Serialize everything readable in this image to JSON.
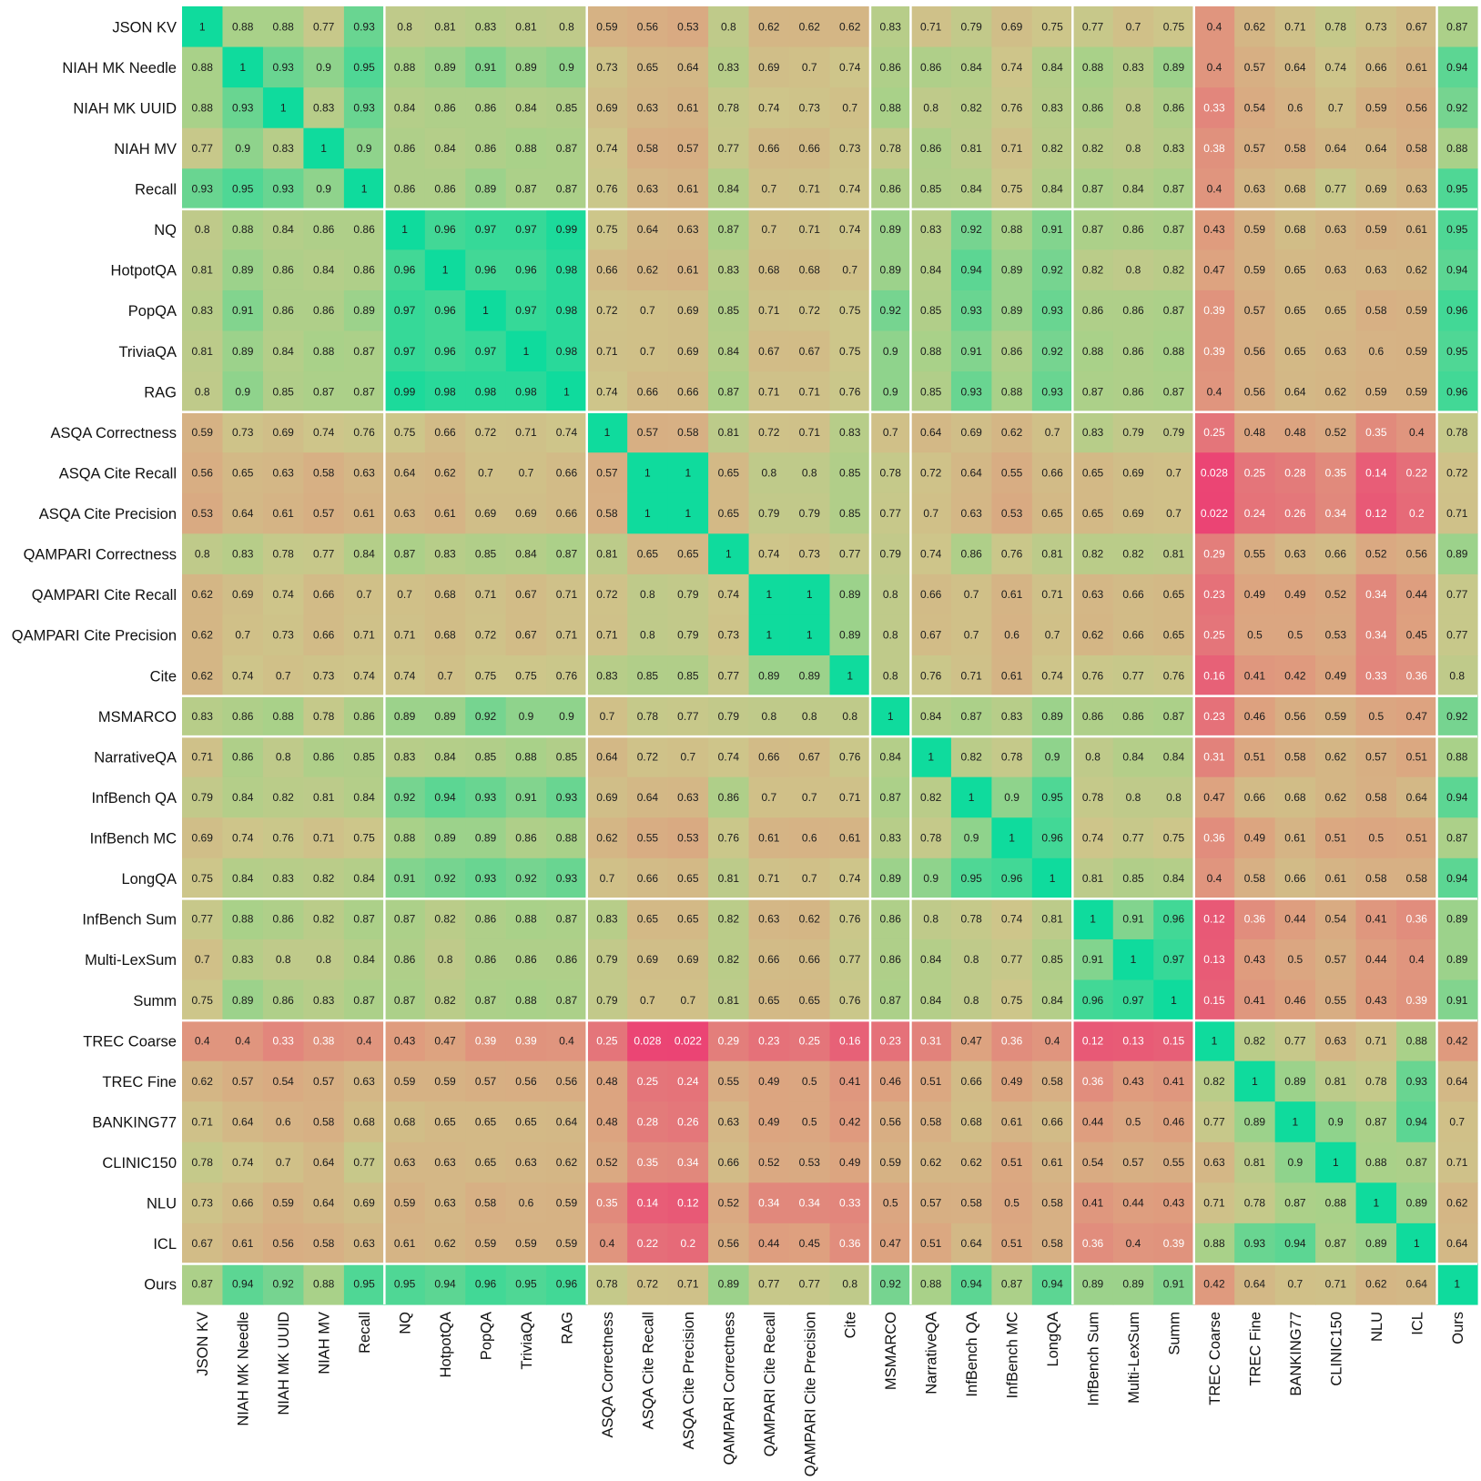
{
  "chart_data": {
    "type": "heatmap",
    "title": "",
    "xlabel": "",
    "ylabel": "",
    "labels": [
      "JSON KV",
      "NIAH MK Needle",
      "NIAH MK UUID",
      "NIAH MV",
      "Recall",
      "NQ",
      "HotpotQA",
      "PopQA",
      "TriviaQA",
      "RAG",
      "ASQA Correctness",
      "ASQA Cite Recall",
      "ASQA Cite Precision",
      "QAMPARI Correctness",
      "QAMPARI Cite Recall",
      "QAMPARI Cite Precision",
      "Cite",
      "MSMARCO",
      "NarrativeQA",
      "InfBench QA",
      "InfBench MC",
      "LongQA",
      "InfBench Sum",
      "Multi-LexSum",
      "Summ",
      "TREC Coarse",
      "TREC Fine",
      "BANKING77",
      "CLINIC150",
      "NLU",
      "ICL",
      "Ours"
    ],
    "group_sizes": [
      5,
      5,
      7,
      1,
      4,
      3,
      6,
      1
    ],
    "colormap": {
      "low": "#ec3f73",
      "mid_low": "#dea07f",
      "mid": "#cdc68a",
      "mid_high": "#a9d189",
      "high": "#0fdb9d"
    },
    "matrix": [
      [
        "1",
        "0.88",
        "0.88",
        "0.77",
        "0.93",
        "0.8",
        "0.81",
        "0.83",
        "0.81",
        "0.8",
        "0.59",
        "0.56",
        "0.53",
        "0.8",
        "0.62",
        "0.62",
        "0.62",
        "0.83",
        "0.71",
        "0.79",
        "0.69",
        "0.75",
        "0.77",
        "0.7",
        "0.75",
        "0.4",
        "0.62",
        "0.71",
        "0.78",
        "0.73",
        "0.67",
        "0.87"
      ],
      [
        "0.88",
        "1",
        "0.93",
        "0.9",
        "0.95",
        "0.88",
        "0.89",
        "0.91",
        "0.89",
        "0.9",
        "0.73",
        "0.65",
        "0.64",
        "0.83",
        "0.69",
        "0.7",
        "0.74",
        "0.86",
        "0.86",
        "0.84",
        "0.74",
        "0.84",
        "0.88",
        "0.83",
        "0.89",
        "0.4",
        "0.57",
        "0.64",
        "0.74",
        "0.66",
        "0.61",
        "0.94"
      ],
      [
        "0.88",
        "0.93",
        "1",
        "0.83",
        "0.93",
        "0.84",
        "0.86",
        "0.86",
        "0.84",
        "0.85",
        "0.69",
        "0.63",
        "0.61",
        "0.78",
        "0.74",
        "0.73",
        "0.7",
        "0.88",
        "0.8",
        "0.82",
        "0.76",
        "0.83",
        "0.86",
        "0.8",
        "0.86",
        "0.33",
        "0.54",
        "0.6",
        "0.7",
        "0.59",
        "0.56",
        "0.92"
      ],
      [
        "0.77",
        "0.9",
        "0.83",
        "1",
        "0.9",
        "0.86",
        "0.84",
        "0.86",
        "0.88",
        "0.87",
        "0.74",
        "0.58",
        "0.57",
        "0.77",
        "0.66",
        "0.66",
        "0.73",
        "0.78",
        "0.86",
        "0.81",
        "0.71",
        "0.82",
        "0.82",
        "0.8",
        "0.83",
        "0.38",
        "0.57",
        "0.58",
        "0.64",
        "0.64",
        "0.58",
        "0.88"
      ],
      [
        "0.93",
        "0.95",
        "0.93",
        "0.9",
        "1",
        "0.86",
        "0.86",
        "0.89",
        "0.87",
        "0.87",
        "0.76",
        "0.63",
        "0.61",
        "0.84",
        "0.7",
        "0.71",
        "0.74",
        "0.86",
        "0.85",
        "0.84",
        "0.75",
        "0.84",
        "0.87",
        "0.84",
        "0.87",
        "0.4",
        "0.63",
        "0.68",
        "0.77",
        "0.69",
        "0.63",
        "0.95"
      ],
      [
        "0.8",
        "0.88",
        "0.84",
        "0.86",
        "0.86",
        "1",
        "0.96",
        "0.97",
        "0.97",
        "0.99",
        "0.75",
        "0.64",
        "0.63",
        "0.87",
        "0.7",
        "0.71",
        "0.74",
        "0.89",
        "0.83",
        "0.92",
        "0.88",
        "0.91",
        "0.87",
        "0.86",
        "0.87",
        "0.43",
        "0.59",
        "0.68",
        "0.63",
        "0.59",
        "0.61",
        "0.95"
      ],
      [
        "0.81",
        "0.89",
        "0.86",
        "0.84",
        "0.86",
        "0.96",
        "1",
        "0.96",
        "0.96",
        "0.98",
        "0.66",
        "0.62",
        "0.61",
        "0.83",
        "0.68",
        "0.68",
        "0.7",
        "0.89",
        "0.84",
        "0.94",
        "0.89",
        "0.92",
        "0.82",
        "0.8",
        "0.82",
        "0.47",
        "0.59",
        "0.65",
        "0.63",
        "0.63",
        "0.62",
        "0.94"
      ],
      [
        "0.83",
        "0.91",
        "0.86",
        "0.86",
        "0.89",
        "0.97",
        "0.96",
        "1",
        "0.97",
        "0.98",
        "0.72",
        "0.7",
        "0.69",
        "0.85",
        "0.71",
        "0.72",
        "0.75",
        "0.92",
        "0.85",
        "0.93",
        "0.89",
        "0.93",
        "0.86",
        "0.86",
        "0.87",
        "0.39",
        "0.57",
        "0.65",
        "0.65",
        "0.58",
        "0.59",
        "0.96"
      ],
      [
        "0.81",
        "0.89",
        "0.84",
        "0.88",
        "0.87",
        "0.97",
        "0.96",
        "0.97",
        "1",
        "0.98",
        "0.71",
        "0.7",
        "0.69",
        "0.84",
        "0.67",
        "0.67",
        "0.75",
        "0.9",
        "0.88",
        "0.91",
        "0.86",
        "0.92",
        "0.88",
        "0.86",
        "0.88",
        "0.39",
        "0.56",
        "0.65",
        "0.63",
        "0.6",
        "0.59",
        "0.95"
      ],
      [
        "0.8",
        "0.9",
        "0.85",
        "0.87",
        "0.87",
        "0.99",
        "0.98",
        "0.98",
        "0.98",
        "1",
        "0.74",
        "0.66",
        "0.66",
        "0.87",
        "0.71",
        "0.71",
        "0.76",
        "0.9",
        "0.85",
        "0.93",
        "0.88",
        "0.93",
        "0.87",
        "0.86",
        "0.87",
        "0.4",
        "0.56",
        "0.64",
        "0.62",
        "0.59",
        "0.59",
        "0.96"
      ],
      [
        "0.59",
        "0.73",
        "0.69",
        "0.74",
        "0.76",
        "0.75",
        "0.66",
        "0.72",
        "0.71",
        "0.74",
        "1",
        "0.57",
        "0.58",
        "0.81",
        "0.72",
        "0.71",
        "0.83",
        "0.7",
        "0.64",
        "0.69",
        "0.62",
        "0.7",
        "0.83",
        "0.79",
        "0.79",
        "0.25",
        "0.48",
        "0.48",
        "0.52",
        "0.35",
        "0.4",
        "0.78"
      ],
      [
        "0.56",
        "0.65",
        "0.63",
        "0.58",
        "0.63",
        "0.64",
        "0.62",
        "0.7",
        "0.7",
        "0.66",
        "0.57",
        "1",
        "1",
        "0.65",
        "0.8",
        "0.8",
        "0.85",
        "0.78",
        "0.72",
        "0.64",
        "0.55",
        "0.66",
        "0.65",
        "0.69",
        "0.7",
        "0.028",
        "0.25",
        "0.28",
        "0.35",
        "0.14",
        "0.22",
        "0.72"
      ],
      [
        "0.53",
        "0.64",
        "0.61",
        "0.57",
        "0.61",
        "0.63",
        "0.61",
        "0.69",
        "0.69",
        "0.66",
        "0.58",
        "1",
        "1",
        "0.65",
        "0.79",
        "0.79",
        "0.85",
        "0.77",
        "0.7",
        "0.63",
        "0.53",
        "0.65",
        "0.65",
        "0.69",
        "0.7",
        "0.022",
        "0.24",
        "0.26",
        "0.34",
        "0.12",
        "0.2",
        "0.71"
      ],
      [
        "0.8",
        "0.83",
        "0.78",
        "0.77",
        "0.84",
        "0.87",
        "0.83",
        "0.85",
        "0.84",
        "0.87",
        "0.81",
        "0.65",
        "0.65",
        "1",
        "0.74",
        "0.73",
        "0.77",
        "0.79",
        "0.74",
        "0.86",
        "0.76",
        "0.81",
        "0.82",
        "0.82",
        "0.81",
        "0.29",
        "0.55",
        "0.63",
        "0.66",
        "0.52",
        "0.56",
        "0.89"
      ],
      [
        "0.62",
        "0.69",
        "0.74",
        "0.66",
        "0.7",
        "0.7",
        "0.68",
        "0.71",
        "0.67",
        "0.71",
        "0.72",
        "0.8",
        "0.79",
        "0.74",
        "1",
        "1",
        "0.89",
        "0.8",
        "0.66",
        "0.7",
        "0.61",
        "0.71",
        "0.63",
        "0.66",
        "0.65",
        "0.23",
        "0.49",
        "0.49",
        "0.52",
        "0.34",
        "0.44",
        "0.77"
      ],
      [
        "0.62",
        "0.7",
        "0.73",
        "0.66",
        "0.71",
        "0.71",
        "0.68",
        "0.72",
        "0.67",
        "0.71",
        "0.71",
        "0.8",
        "0.79",
        "0.73",
        "1",
        "1",
        "0.89",
        "0.8",
        "0.67",
        "0.7",
        "0.6",
        "0.7",
        "0.62",
        "0.66",
        "0.65",
        "0.25",
        "0.5",
        "0.5",
        "0.53",
        "0.34",
        "0.45",
        "0.77"
      ],
      [
        "0.62",
        "0.74",
        "0.7",
        "0.73",
        "0.74",
        "0.74",
        "0.7",
        "0.75",
        "0.75",
        "0.76",
        "0.83",
        "0.85",
        "0.85",
        "0.77",
        "0.89",
        "0.89",
        "1",
        "0.8",
        "0.76",
        "0.71",
        "0.61",
        "0.74",
        "0.76",
        "0.77",
        "0.76",
        "0.16",
        "0.41",
        "0.42",
        "0.49",
        "0.33",
        "0.36",
        "0.8"
      ],
      [
        "0.83",
        "0.86",
        "0.88",
        "0.78",
        "0.86",
        "0.89",
        "0.89",
        "0.92",
        "0.9",
        "0.9",
        "0.7",
        "0.78",
        "0.77",
        "0.79",
        "0.8",
        "0.8",
        "0.8",
        "1",
        "0.84",
        "0.87",
        "0.83",
        "0.89",
        "0.86",
        "0.86",
        "0.87",
        "0.23",
        "0.46",
        "0.56",
        "0.59",
        "0.5",
        "0.47",
        "0.92"
      ],
      [
        "0.71",
        "0.86",
        "0.8",
        "0.86",
        "0.85",
        "0.83",
        "0.84",
        "0.85",
        "0.88",
        "0.85",
        "0.64",
        "0.72",
        "0.7",
        "0.74",
        "0.66",
        "0.67",
        "0.76",
        "0.84",
        "1",
        "0.82",
        "0.78",
        "0.9",
        "0.8",
        "0.84",
        "0.84",
        "0.31",
        "0.51",
        "0.58",
        "0.62",
        "0.57",
        "0.51",
        "0.88"
      ],
      [
        "0.79",
        "0.84",
        "0.82",
        "0.81",
        "0.84",
        "0.92",
        "0.94",
        "0.93",
        "0.91",
        "0.93",
        "0.69",
        "0.64",
        "0.63",
        "0.86",
        "0.7",
        "0.7",
        "0.71",
        "0.87",
        "0.82",
        "1",
        "0.9",
        "0.95",
        "0.78",
        "0.8",
        "0.8",
        "0.47",
        "0.66",
        "0.68",
        "0.62",
        "0.58",
        "0.64",
        "0.94"
      ],
      [
        "0.69",
        "0.74",
        "0.76",
        "0.71",
        "0.75",
        "0.88",
        "0.89",
        "0.89",
        "0.86",
        "0.88",
        "0.62",
        "0.55",
        "0.53",
        "0.76",
        "0.61",
        "0.6",
        "0.61",
        "0.83",
        "0.78",
        "0.9",
        "1",
        "0.96",
        "0.74",
        "0.77",
        "0.75",
        "0.36",
        "0.49",
        "0.61",
        "0.51",
        "0.5",
        "0.51",
        "0.87"
      ],
      [
        "0.75",
        "0.84",
        "0.83",
        "0.82",
        "0.84",
        "0.91",
        "0.92",
        "0.93",
        "0.92",
        "0.93",
        "0.7",
        "0.66",
        "0.65",
        "0.81",
        "0.71",
        "0.7",
        "0.74",
        "0.89",
        "0.9",
        "0.95",
        "0.96",
        "1",
        "0.81",
        "0.85",
        "0.84",
        "0.4",
        "0.58",
        "0.66",
        "0.61",
        "0.58",
        "0.58",
        "0.94"
      ],
      [
        "0.77",
        "0.88",
        "0.86",
        "0.82",
        "0.87",
        "0.87",
        "0.82",
        "0.86",
        "0.88",
        "0.87",
        "0.83",
        "0.65",
        "0.65",
        "0.82",
        "0.63",
        "0.62",
        "0.76",
        "0.86",
        "0.8",
        "0.78",
        "0.74",
        "0.81",
        "1",
        "0.91",
        "0.96",
        "0.12",
        "0.36",
        "0.44",
        "0.54",
        "0.41",
        "0.36",
        "0.89"
      ],
      [
        "0.7",
        "0.83",
        "0.8",
        "0.8",
        "0.84",
        "0.86",
        "0.8",
        "0.86",
        "0.86",
        "0.86",
        "0.79",
        "0.69",
        "0.69",
        "0.82",
        "0.66",
        "0.66",
        "0.77",
        "0.86",
        "0.84",
        "0.8",
        "0.77",
        "0.85",
        "0.91",
        "1",
        "0.97",
        "0.13",
        "0.43",
        "0.5",
        "0.57",
        "0.44",
        "0.4",
        "0.89"
      ],
      [
        "0.75",
        "0.89",
        "0.86",
        "0.83",
        "0.87",
        "0.87",
        "0.82",
        "0.87",
        "0.88",
        "0.87",
        "0.79",
        "0.7",
        "0.7",
        "0.81",
        "0.65",
        "0.65",
        "0.76",
        "0.87",
        "0.84",
        "0.8",
        "0.75",
        "0.84",
        "0.96",
        "0.97",
        "1",
        "0.15",
        "0.41",
        "0.46",
        "0.55",
        "0.43",
        "0.39",
        "0.91"
      ],
      [
        "0.4",
        "0.4",
        "0.33",
        "0.38",
        "0.4",
        "0.43",
        "0.47",
        "0.39",
        "0.39",
        "0.4",
        "0.25",
        "0.028",
        "0.022",
        "0.29",
        "0.23",
        "0.25",
        "0.16",
        "0.23",
        "0.31",
        "0.47",
        "0.36",
        "0.4",
        "0.12",
        "0.13",
        "0.15",
        "1",
        "0.82",
        "0.77",
        "0.63",
        "0.71",
        "0.88",
        "0.42"
      ],
      [
        "0.62",
        "0.57",
        "0.54",
        "0.57",
        "0.63",
        "0.59",
        "0.59",
        "0.57",
        "0.56",
        "0.56",
        "0.48",
        "0.25",
        "0.24",
        "0.55",
        "0.49",
        "0.5",
        "0.41",
        "0.46",
        "0.51",
        "0.66",
        "0.49",
        "0.58",
        "0.36",
        "0.43",
        "0.41",
        "0.82",
        "1",
        "0.89",
        "0.81",
        "0.78",
        "0.93",
        "0.64"
      ],
      [
        "0.71",
        "0.64",
        "0.6",
        "0.58",
        "0.68",
        "0.68",
        "0.65",
        "0.65",
        "0.65",
        "0.64",
        "0.48",
        "0.28",
        "0.26",
        "0.63",
        "0.49",
        "0.5",
        "0.42",
        "0.56",
        "0.58",
        "0.68",
        "0.61",
        "0.66",
        "0.44",
        "0.5",
        "0.46",
        "0.77",
        "0.89",
        "1",
        "0.9",
        "0.87",
        "0.94",
        "0.7"
      ],
      [
        "0.78",
        "0.74",
        "0.7",
        "0.64",
        "0.77",
        "0.63",
        "0.63",
        "0.65",
        "0.63",
        "0.62",
        "0.52",
        "0.35",
        "0.34",
        "0.66",
        "0.52",
        "0.53",
        "0.49",
        "0.59",
        "0.62",
        "0.62",
        "0.51",
        "0.61",
        "0.54",
        "0.57",
        "0.55",
        "0.63",
        "0.81",
        "0.9",
        "1",
        "0.88",
        "0.87",
        "0.71"
      ],
      [
        "0.73",
        "0.66",
        "0.59",
        "0.64",
        "0.69",
        "0.59",
        "0.63",
        "0.58",
        "0.6",
        "0.59",
        "0.35",
        "0.14",
        "0.12",
        "0.52",
        "0.34",
        "0.34",
        "0.33",
        "0.5",
        "0.57",
        "0.58",
        "0.5",
        "0.58",
        "0.41",
        "0.44",
        "0.43",
        "0.71",
        "0.78",
        "0.87",
        "0.88",
        "1",
        "0.89",
        "0.62"
      ],
      [
        "0.67",
        "0.61",
        "0.56",
        "0.58",
        "0.63",
        "0.61",
        "0.62",
        "0.59",
        "0.59",
        "0.59",
        "0.4",
        "0.22",
        "0.2",
        "0.56",
        "0.44",
        "0.45",
        "0.36",
        "0.47",
        "0.51",
        "0.64",
        "0.51",
        "0.58",
        "0.36",
        "0.4",
        "0.39",
        "0.88",
        "0.93",
        "0.94",
        "0.87",
        "0.89",
        "1",
        "0.64"
      ],
      [
        "0.87",
        "0.94",
        "0.92",
        "0.88",
        "0.95",
        "0.95",
        "0.94",
        "0.96",
        "0.95",
        "0.96",
        "0.78",
        "0.72",
        "0.71",
        "0.89",
        "0.77",
        "0.77",
        "0.8",
        "0.92",
        "0.88",
        "0.94",
        "0.87",
        "0.94",
        "0.89",
        "0.89",
        "0.91",
        "0.42",
        "0.64",
        "0.7",
        "0.71",
        "0.62",
        "0.64",
        "1"
      ]
    ]
  }
}
